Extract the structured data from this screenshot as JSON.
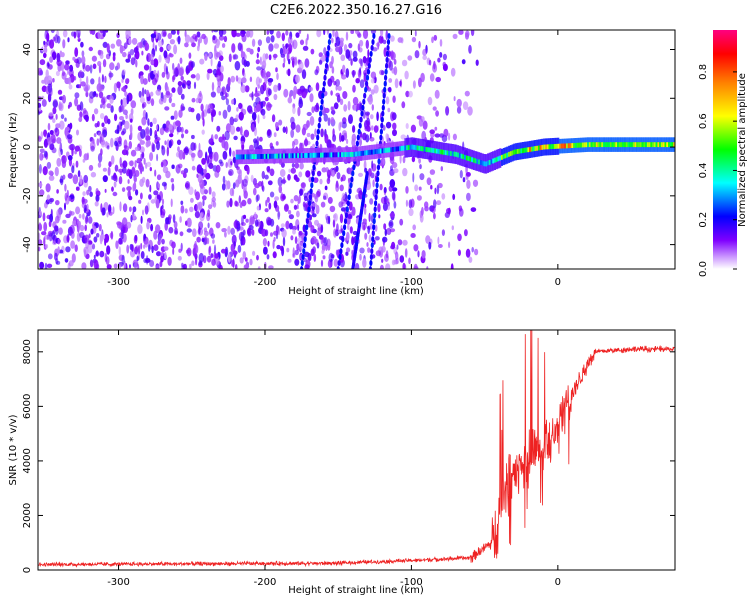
{
  "title": "C2E6.2022.350.16.27.G16",
  "chart_data": [
    {
      "type": "heatmap",
      "xlabel": "Height of straight line (km)",
      "ylabel": "Frequency (Hz)",
      "xlim": [
        -355,
        80
      ],
      "ylim": [
        -50,
        48
      ],
      "xticks": [
        -300,
        -200,
        -100,
        0
      ],
      "yticks": [
        -40,
        -20,
        0,
        20,
        40
      ],
      "colorbar": {
        "label": "Normalized spectral amplitude",
        "ticks": [
          "0.0",
          "0.2",
          "0.4",
          "0.6",
          "0.8"
        ],
        "range": [
          0,
          0.97
        ],
        "colors": [
          "#ffffff",
          "#7f00ff",
          "#0000ff",
          "#00ffff",
          "#00ff00",
          "#ffff00",
          "#ff8000",
          "#ff0000",
          "#ff0080"
        ]
      },
      "ridge": {
        "description_points": [
          {
            "x": -215,
            "y": -4
          },
          {
            "x": -140,
            "y": -3
          },
          {
            "x": -100,
            "y": 0
          },
          {
            "x": -70,
            "y": -3
          },
          {
            "x": -50,
            "y": -7
          },
          {
            "x": -30,
            "y": -2
          },
          {
            "x": -10,
            "y": 0
          },
          {
            "x": 20,
            "y": 1
          },
          {
            "x": 80,
            "y": 1
          }
        ]
      },
      "noise_extent": {
        "x_end": -65
      }
    },
    {
      "type": "line",
      "xlabel": "Height of straight line (km)",
      "ylabel": "SNR (10 * v/v)",
      "xlim": [
        -355,
        80
      ],
      "ylim": [
        0,
        8800
      ],
      "xticks": [
        -300,
        -200,
        -100,
        0
      ],
      "yticks": [
        0,
        2000,
        4000,
        6000,
        8000
      ],
      "color": "#ee2222",
      "envelope": [
        {
          "x": -355,
          "y": 200
        },
        {
          "x": -150,
          "y": 250
        },
        {
          "x": -100,
          "y": 350
        },
        {
          "x": -60,
          "y": 450
        },
        {
          "x": -45,
          "y": 1000
        },
        {
          "x": -35,
          "y": 3000
        },
        {
          "x": -20,
          "y": 4000
        },
        {
          "x": -5,
          "y": 4800
        },
        {
          "x": 10,
          "y": 6500
        },
        {
          "x": 25,
          "y": 8000
        },
        {
          "x": 50,
          "y": 8100
        },
        {
          "x": 80,
          "y": 8100
        }
      ]
    }
  ]
}
